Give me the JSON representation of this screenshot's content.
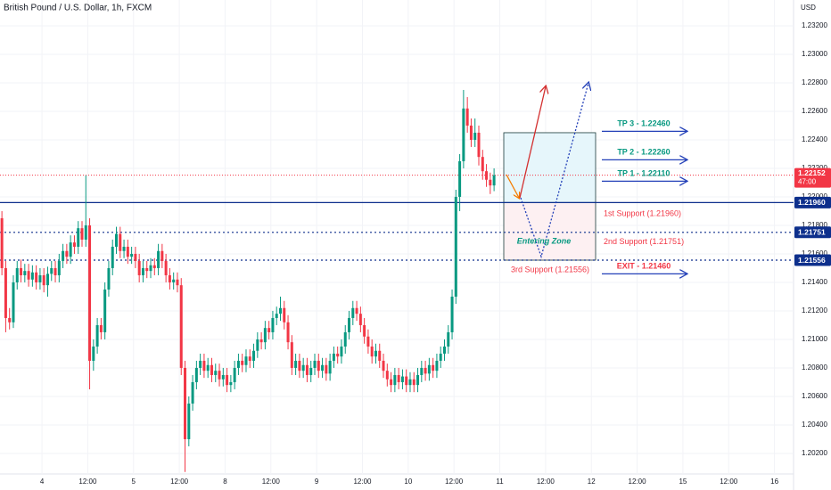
{
  "chart_data": {
    "type": "candlestick",
    "title": "British Pound / U.S. Dollar, 1h, FXCM",
    "currency": "USD",
    "up_color": "#089981",
    "down_color": "#f23645",
    "grid": true,
    "xlim": [
      0,
      208
    ],
    "xticks": [
      {
        "value": 11,
        "label": "4"
      },
      {
        "value": 23,
        "label": "12:00"
      },
      {
        "value": 35,
        "label": "5"
      },
      {
        "value": 47,
        "label": "12:00"
      },
      {
        "value": 59,
        "label": "8"
      },
      {
        "value": 71,
        "label": "12:00"
      },
      {
        "value": 83,
        "label": "9"
      },
      {
        "value": 95,
        "label": "12:00"
      },
      {
        "value": 107,
        "label": "10"
      },
      {
        "value": 119,
        "label": "12:00"
      },
      {
        "value": 131,
        "label": "11"
      },
      {
        "value": 143,
        "label": "12:00"
      },
      {
        "value": 155,
        "label": "12"
      },
      {
        "value": 167,
        "label": "12:00"
      },
      {
        "value": 179,
        "label": "15"
      },
      {
        "value": 191,
        "label": "12:00"
      },
      {
        "value": 203,
        "label": "16"
      }
    ],
    "ylim": [
      1.20056,
      1.23381
    ],
    "yticks": [
      {
        "value": 1.232,
        "label": "1.23200"
      },
      {
        "value": 1.23,
        "label": "1.23000"
      },
      {
        "value": 1.228,
        "label": "1.22800"
      },
      {
        "value": 1.226,
        "label": "1.22600"
      },
      {
        "value": 1.224,
        "label": "1.22400"
      },
      {
        "value": 1.222,
        "label": "1.22200"
      },
      {
        "value": 1.22,
        "label": "1.22000"
      },
      {
        "value": 1.218,
        "label": "1.21800"
      },
      {
        "value": 1.216,
        "label": "1.21600"
      },
      {
        "value": 1.214,
        "label": "1.21400"
      },
      {
        "value": 1.212,
        "label": "1.21200"
      },
      {
        "value": 1.21,
        "label": "1.21000"
      },
      {
        "value": 1.208,
        "label": "1.20800"
      },
      {
        "value": 1.206,
        "label": "1.20600"
      },
      {
        "value": 1.204,
        "label": "1.20400"
      },
      {
        "value": 1.202,
        "label": "1.20200"
      }
    ],
    "ohlc": [
      [
        1.2185,
        1.219,
        1.2145,
        1.215
      ],
      [
        1.215,
        1.2155,
        1.2105,
        1.2115
      ],
      [
        1.2115,
        1.2122,
        1.2107,
        1.2112
      ],
      [
        1.2112,
        1.2145,
        1.2108,
        1.214
      ],
      [
        1.214,
        1.2155,
        1.2135,
        1.215
      ],
      [
        1.215,
        1.2156,
        1.214,
        1.2145
      ],
      [
        1.2145,
        1.2153,
        1.214,
        1.2148
      ],
      [
        1.2148,
        1.2153,
        1.2137,
        1.2142
      ],
      [
        1.2142,
        1.2152,
        1.2137,
        1.2147
      ],
      [
        1.2147,
        1.2152,
        1.2135,
        1.214
      ],
      [
        1.214,
        1.215,
        1.2135,
        1.2145
      ],
      [
        1.2145,
        1.215,
        1.2133,
        1.2138
      ],
      [
        1.2138,
        1.2151,
        1.213,
        1.2146
      ],
      [
        1.2146,
        1.2155,
        1.2141,
        1.215
      ],
      [
        1.215,
        1.2155,
        1.214,
        1.2145
      ],
      [
        1.2145,
        1.216,
        1.214,
        1.2155
      ],
      [
        1.2155,
        1.2167,
        1.215,
        1.2162
      ],
      [
        1.2162,
        1.2167,
        1.2153,
        1.2158
      ],
      [
        1.2158,
        1.2173,
        1.2153,
        1.2168
      ],
      [
        1.2168,
        1.2173,
        1.216,
        1.2165
      ],
      [
        1.2165,
        1.2183,
        1.216,
        1.2178
      ],
      [
        1.2178,
        1.2183,
        1.2165,
        1.217
      ],
      [
        1.217,
        1.2215,
        1.2165,
        1.218
      ],
      [
        1.218,
        1.2185,
        1.2065,
        1.2085
      ],
      [
        1.2085,
        1.21,
        1.2078,
        1.2095
      ],
      [
        1.2095,
        1.2115,
        1.209,
        1.211
      ],
      [
        1.211,
        1.2115,
        1.21,
        1.2105
      ],
      [
        1.2105,
        1.214,
        1.21,
        1.2135
      ],
      [
        1.2135,
        1.2155,
        1.213,
        1.215
      ],
      [
        1.215,
        1.217,
        1.2145,
        1.2165
      ],
      [
        1.2165,
        1.2179,
        1.216,
        1.2174
      ],
      [
        1.2174,
        1.2179,
        1.2157,
        1.2162
      ],
      [
        1.2162,
        1.217,
        1.2157,
        1.2165
      ],
      [
        1.2165,
        1.217,
        1.2153,
        1.2158
      ],
      [
        1.2158,
        1.2165,
        1.2153,
        1.216
      ],
      [
        1.216,
        1.2165,
        1.215,
        1.2155
      ],
      [
        1.2155,
        1.216,
        1.214,
        1.2145
      ],
      [
        1.2145,
        1.2155,
        1.214,
        1.215
      ],
      [
        1.215,
        1.2155,
        1.2143,
        1.2148
      ],
      [
        1.2148,
        1.2157,
        1.2143,
        1.2152
      ],
      [
        1.2152,
        1.2157,
        1.2145,
        1.215
      ],
      [
        1.215,
        1.2167,
        1.2145,
        1.2162
      ],
      [
        1.2162,
        1.2167,
        1.215,
        1.2155
      ],
      [
        1.2155,
        1.216,
        1.214,
        1.2145
      ],
      [
        1.2145,
        1.215,
        1.2135,
        1.214
      ],
      [
        1.214,
        1.2147,
        1.2135,
        1.2142
      ],
      [
        1.2142,
        1.2147,
        1.2133,
        1.2138
      ],
      [
        1.2138,
        1.2143,
        1.2075,
        1.208
      ],
      [
        1.208,
        1.2085,
        1.2007,
        1.203
      ],
      [
        1.203,
        1.206,
        1.2025,
        1.2055
      ],
      [
        1.2055,
        1.2075,
        1.205,
        1.207
      ],
      [
        1.207,
        1.2085,
        1.2065,
        1.208
      ],
      [
        1.208,
        1.209,
        1.2075,
        1.2085
      ],
      [
        1.2085,
        1.209,
        1.2073,
        1.2078
      ],
      [
        1.2078,
        1.2087,
        1.2073,
        1.2082
      ],
      [
        1.2082,
        1.2087,
        1.207,
        1.2075
      ],
      [
        1.2075,
        1.2083,
        1.207,
        1.2078
      ],
      [
        1.2078,
        1.2083,
        1.2067,
        1.2072
      ],
      [
        1.2072,
        1.208,
        1.2067,
        1.2075
      ],
      [
        1.2075,
        1.208,
        1.2063,
        1.2068
      ],
      [
        1.2068,
        1.2075,
        1.2063,
        1.207
      ],
      [
        1.207,
        1.2085,
        1.2065,
        1.208
      ],
      [
        1.208,
        1.209,
        1.2075,
        1.2085
      ],
      [
        1.2085,
        1.209,
        1.2077,
        1.2082
      ],
      [
        1.2082,
        1.2093,
        1.2077,
        1.2088
      ],
      [
        1.2088,
        1.2093,
        1.208,
        1.2085
      ],
      [
        1.2085,
        1.2097,
        1.208,
        1.2092
      ],
      [
        1.2092,
        1.2105,
        1.2087,
        1.21
      ],
      [
        1.21,
        1.2105,
        1.2093,
        1.2098
      ],
      [
        1.2098,
        1.2113,
        1.2093,
        1.2108
      ],
      [
        1.2108,
        1.2113,
        1.21,
        1.2105
      ],
      [
        1.2105,
        1.212,
        1.21,
        1.2115
      ],
      [
        1.2115,
        1.2123,
        1.211,
        1.2118
      ],
      [
        1.2118,
        1.213,
        1.2113,
        1.2122
      ],
      [
        1.2122,
        1.2127,
        1.2107,
        1.2112
      ],
      [
        1.2112,
        1.2117,
        1.2093,
        1.2098
      ],
      [
        1.2098,
        1.2103,
        1.2075,
        1.208
      ],
      [
        1.208,
        1.209,
        1.2075,
        1.2085
      ],
      [
        1.2085,
        1.209,
        1.2073,
        1.2078
      ],
      [
        1.2078,
        1.2087,
        1.2073,
        1.2082
      ],
      [
        1.2082,
        1.2087,
        1.207,
        1.2075
      ],
      [
        1.2075,
        1.2085,
        1.207,
        1.208
      ],
      [
        1.208,
        1.209,
        1.2075,
        1.2085
      ],
      [
        1.2085,
        1.209,
        1.2073,
        1.2078
      ],
      [
        1.2078,
        1.2087,
        1.2073,
        1.2082
      ],
      [
        1.2082,
        1.2087,
        1.2071,
        1.2076
      ],
      [
        1.2076,
        1.209,
        1.2071,
        1.2085
      ],
      [
        1.2085,
        1.2095,
        1.208,
        1.209
      ],
      [
        1.209,
        1.2095,
        1.2083,
        1.2088
      ],
      [
        1.2088,
        1.21,
        1.2083,
        1.2095
      ],
      [
        1.2095,
        1.211,
        1.209,
        1.2105
      ],
      [
        1.2105,
        1.212,
        1.21,
        1.2115
      ],
      [
        1.2115,
        1.2127,
        1.211,
        1.2122
      ],
      [
        1.2122,
        1.2127,
        1.2113,
        1.2118
      ],
      [
        1.2118,
        1.2123,
        1.2105,
        1.211
      ],
      [
        1.211,
        1.2115,
        1.2097,
        1.2102
      ],
      [
        1.2102,
        1.2107,
        1.209,
        1.2095
      ],
      [
        1.2095,
        1.21,
        1.2083,
        1.2088
      ],
      [
        1.2088,
        1.2097,
        1.2083,
        1.2092
      ],
      [
        1.2092,
        1.2097,
        1.208,
        1.2085
      ],
      [
        1.2085,
        1.209,
        1.2073,
        1.2078
      ],
      [
        1.2078,
        1.2083,
        1.2067,
        1.2072
      ],
      [
        1.2072,
        1.2077,
        1.2063,
        1.2068
      ],
      [
        1.2068,
        1.208,
        1.2063,
        1.2075
      ],
      [
        1.2075,
        1.208,
        1.2065,
        1.207
      ],
      [
        1.207,
        1.2079,
        1.2065,
        1.2074
      ],
      [
        1.2074,
        1.2079,
        1.2063,
        1.2068
      ],
      [
        1.2068,
        1.2077,
        1.2063,
        1.2072
      ],
      [
        1.2072,
        1.2077,
        1.2063,
        1.2068
      ],
      [
        1.2068,
        1.208,
        1.2063,
        1.2075
      ],
      [
        1.2075,
        1.2085,
        1.207,
        1.208
      ],
      [
        1.208,
        1.2085,
        1.2071,
        1.2076
      ],
      [
        1.2076,
        1.2087,
        1.2071,
        1.2082
      ],
      [
        1.2082,
        1.2087,
        1.2073,
        1.2078
      ],
      [
        1.2078,
        1.209,
        1.2073,
        1.2085
      ],
      [
        1.2085,
        1.2095,
        1.208,
        1.209
      ],
      [
        1.209,
        1.21,
        1.2085,
        1.2095
      ],
      [
        1.2095,
        1.211,
        1.209,
        1.2105
      ],
      [
        1.2105,
        1.2135,
        1.21,
        1.213
      ],
      [
        1.213,
        1.2205,
        1.2125,
        1.22
      ],
      [
        1.22,
        1.223,
        1.219,
        1.2225
      ],
      [
        1.2225,
        1.2275,
        1.222,
        1.2262
      ],
      [
        1.2262,
        1.227,
        1.2245,
        1.225
      ],
      [
        1.225,
        1.2255,
        1.2235,
        1.224
      ],
      [
        1.224,
        1.2255,
        1.2235,
        1.2245
      ],
      [
        1.2245,
        1.225,
        1.2222,
        1.2228
      ],
      [
        1.2228,
        1.2233,
        1.2212,
        1.2218
      ],
      [
        1.2218,
        1.2223,
        1.2207,
        1.2212
      ],
      [
        1.2212,
        1.2217,
        1.2202,
        1.2208
      ],
      [
        1.2208,
        1.222,
        1.2204,
        1.22152
      ]
    ],
    "last_price": {
      "value": 1.22152,
      "label": "1.22152",
      "countdown": "47:00",
      "color": "#f23645"
    },
    "levels": [
      {
        "value": 1.2196,
        "label": "1.21960",
        "color": "#0d2f8c",
        "style": "solid"
      },
      {
        "value": 1.21751,
        "label": "1.21751",
        "color": "#0d2f8c",
        "style": "dotted"
      },
      {
        "value": 1.21556,
        "label": "1.21556",
        "color": "#0d2f8c",
        "style": "dotted"
      }
    ],
    "targets": [
      {
        "text": "TP 3 - 1.22460",
        "value": 1.2246,
        "color": "#089981"
      },
      {
        "text": "TP 2 - 1.22260",
        "value": 1.2226,
        "color": "#089981"
      },
      {
        "text": "TP 1 - 1.22110",
        "value": 1.2211,
        "color": "#089981"
      },
      {
        "text": "EXIT - 1.21460",
        "value": 1.2146,
        "color": "#f23645"
      }
    ],
    "supports": [
      {
        "text": "1st Support (1.21960)",
        "value": 1.2196
      },
      {
        "text": "2nd Support (1.21751)",
        "value": 1.21751
      },
      {
        "text": "3rd Support (1.21556)",
        "value": 1.21556
      }
    ],
    "zone": {
      "label": "Entering Zone",
      "top": 1.2245,
      "middle": 1.2196,
      "bottom": 1.21556
    }
  }
}
